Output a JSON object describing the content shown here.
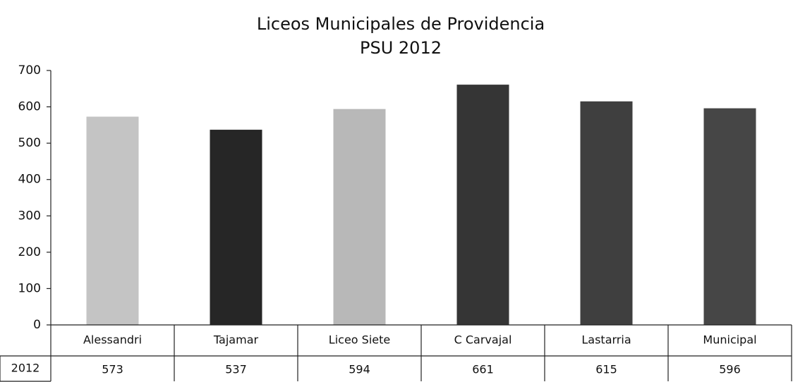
{
  "chart_data": {
    "type": "bar",
    "title": "Liceos Municipales de Providencia",
    "subtitle": "PSU 2012",
    "categories": [
      "Alessandri",
      "Tajamar",
      "Liceo Siete",
      "C Carvajal",
      "Lastarria",
      "Municipal"
    ],
    "series": [
      {
        "name": "2012",
        "values": [
          573,
          537,
          594,
          661,
          615,
          596
        ],
        "colors": [
          "#c4c4c4",
          "#262626",
          "#b8b8b8",
          "#353535",
          "#3f3f3f",
          "#464646"
        ]
      }
    ],
    "ylim": [
      0,
      700
    ],
    "yticks": [
      0,
      100,
      200,
      300,
      400,
      500,
      600,
      700
    ],
    "data_table": true
  }
}
